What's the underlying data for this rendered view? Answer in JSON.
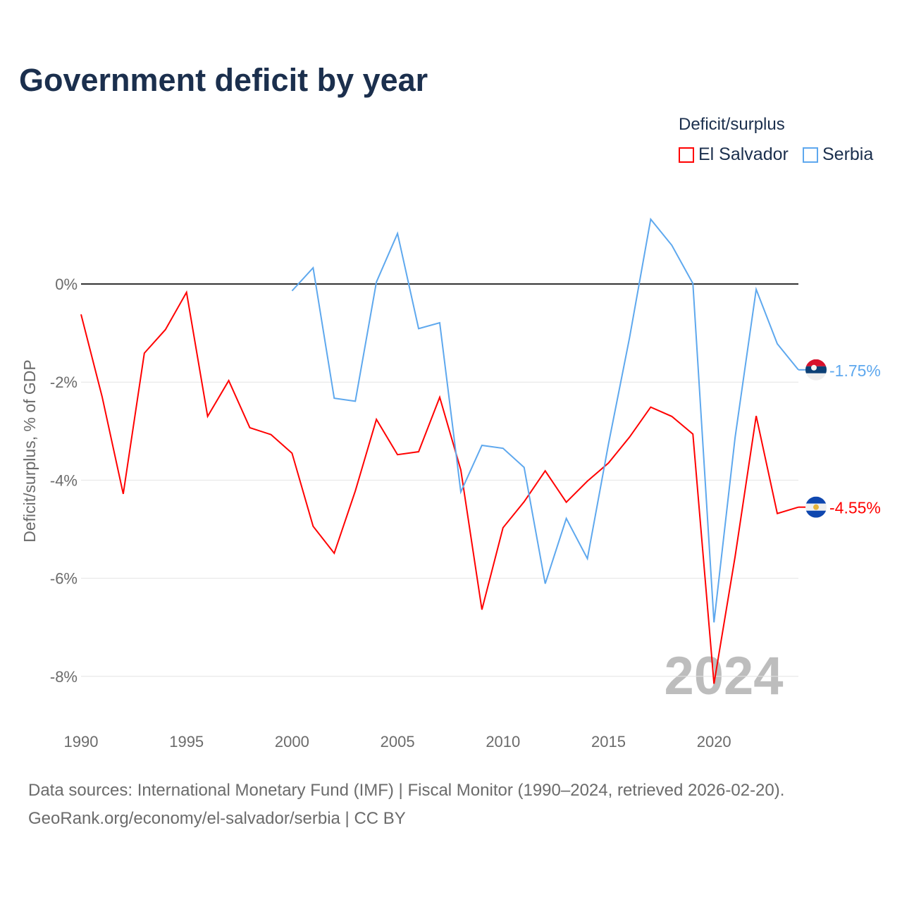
{
  "chart_data": {
    "type": "line",
    "title": "Government deficit by year",
    "xlabel": "",
    "ylabel": "Deficit/surplus, % of GDP",
    "legend_title": "Deficit/surplus",
    "xlim": [
      1990,
      2024
    ],
    "ylim": [
      -9,
      2
    ],
    "x_ticks": [
      1990,
      1995,
      2000,
      2005,
      2010,
      2015,
      2020
    ],
    "y_ticks": [
      0,
      -2,
      -4,
      -6,
      -8
    ],
    "y_tick_labels": [
      "0%",
      "-2%",
      "-4%",
      "-6%",
      "-8%"
    ],
    "year_label": "2024",
    "series": [
      {
        "name": "El Salvador",
        "color": "#ff0000",
        "end_label": "-4.55%",
        "start": 1990,
        "values": [
          -0.62,
          -2.3,
          -4.28,
          -1.41,
          -0.93,
          -0.17,
          -2.7,
          -1.97,
          -2.93,
          -3.07,
          -3.45,
          -4.94,
          -5.49,
          -4.22,
          -2.76,
          -3.48,
          -3.42,
          -2.31,
          -3.79,
          -6.64,
          -4.97,
          -4.44,
          -3.81,
          -4.45,
          -4.02,
          -3.65,
          -3.12,
          -2.51,
          -2.7,
          -3.06,
          -8.15,
          -5.56,
          -2.69,
          -4.68,
          -4.55
        ]
      },
      {
        "name": "Serbia",
        "color": "#5ea8ee",
        "end_label": "-1.75%",
        "start": 2000,
        "values": [
          -0.14,
          0.33,
          -2.33,
          -2.39,
          0.04,
          1.03,
          -0.91,
          -0.79,
          -4.24,
          -3.29,
          -3.35,
          -3.74,
          -6.11,
          -4.78,
          -5.6,
          -3.26,
          -1.09,
          1.32,
          0.79,
          0.01,
          -6.9,
          -3.13,
          -0.11,
          -1.22,
          -1.75
        ]
      }
    ]
  },
  "footer": {
    "line1": "Data sources: International Monetary Fund (IMF) | Fiscal Monitor (1990–2024, retrieved 2026-02-20).",
    "line2": "GeoRank.org/economy/el-salvador/serbia | CC BY"
  }
}
